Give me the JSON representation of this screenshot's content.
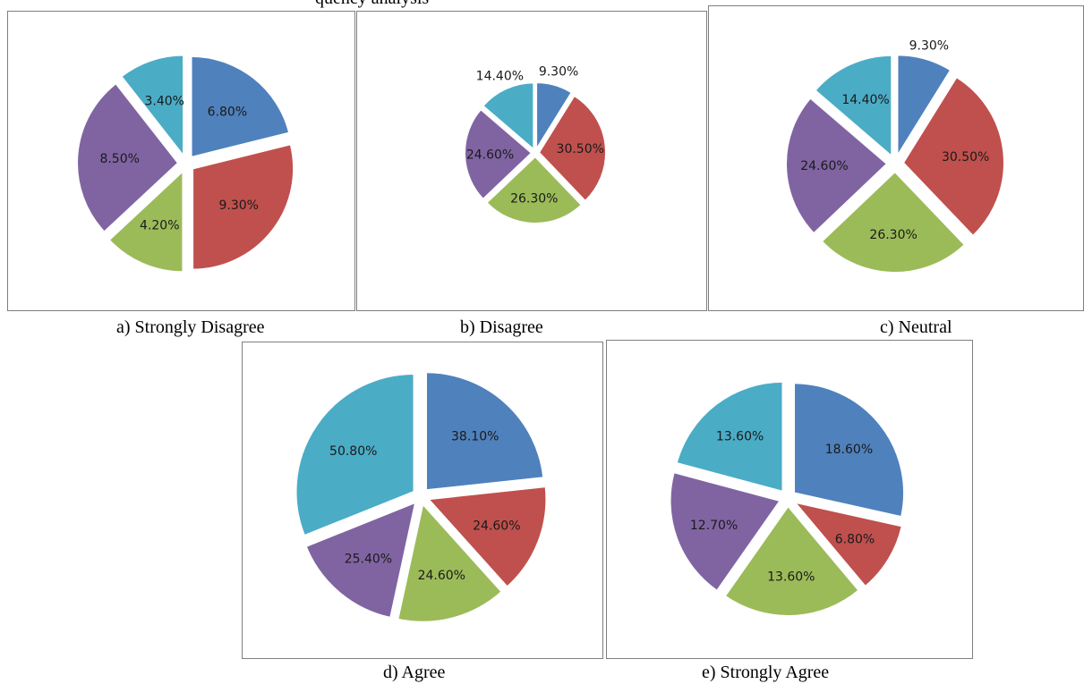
{
  "top_fragment": "quency analysis",
  "colors": [
    "#4F81BD",
    "#C0504D",
    "#9BBB59",
    "#8064A2",
    "#4BACC6"
  ],
  "chart_data": [
    {
      "type": "pie",
      "caption": "a) Strongly Disagree",
      "values": [
        6.8,
        9.3,
        4.2,
        8.5,
        3.4
      ],
      "labels": [
        "6.80%",
        "9.30%",
        "4.20%",
        "8.50%",
        "3.40%"
      ]
    },
    {
      "type": "pie",
      "caption": "b) Disagree",
      "values": [
        9.3,
        30.5,
        26.3,
        24.6,
        14.4
      ],
      "labels": [
        "9.30%",
        "30.50%",
        "26.30%",
        "24.60%",
        "14.40%"
      ]
    },
    {
      "type": "pie",
      "caption": "c) Neutral",
      "values": [
        9.3,
        30.5,
        26.3,
        24.6,
        14.4
      ],
      "labels": [
        "9.30%",
        "30.50%",
        "26.30%",
        "24.60%",
        "14.40%"
      ]
    },
    {
      "type": "pie",
      "caption": "d)  Agree",
      "values": [
        38.1,
        24.6,
        24.6,
        25.4,
        50.8
      ],
      "labels": [
        "38.10%",
        "24.60%",
        "24.60%",
        "25.40%",
        "50.80%"
      ]
    },
    {
      "type": "pie",
      "caption": "e) Strongly Agree",
      "values": [
        18.6,
        6.8,
        13.6,
        12.7,
        13.6
      ],
      "labels": [
        "18.60%",
        "6.80%",
        "13.60%",
        "12.70%",
        "13.60%"
      ]
    }
  ]
}
